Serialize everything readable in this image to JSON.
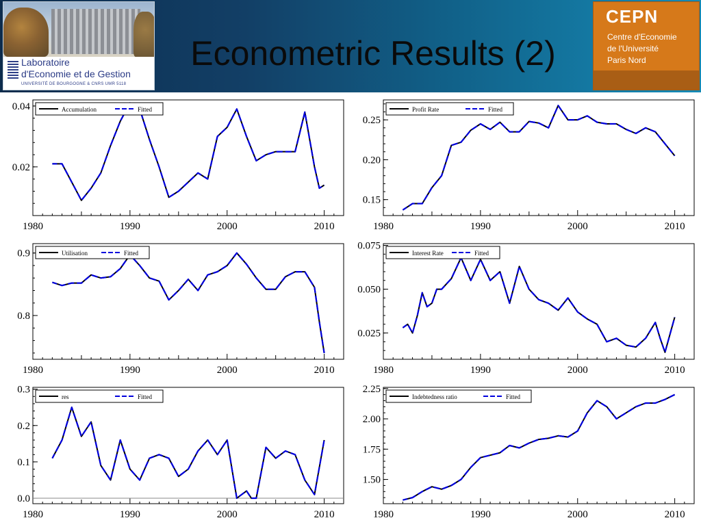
{
  "slide": {
    "title": "Econometric Results (2)",
    "logo_left": {
      "line1": "Laboratoire",
      "line2": "d'Economie et de Gestion",
      "line3": "UNIVERSITÉ DE BOURGOGNE & CNRS UMR 5118"
    },
    "logo_right": {
      "brand": "CEPN",
      "line1": "Centre d'Economie",
      "line2": "de l'Université",
      "line3": "Paris Nord"
    }
  },
  "colors": {
    "actual": "#000000",
    "fitted": "#0000dd",
    "header": "#123f66"
  },
  "chart_data": [
    {
      "type": "line",
      "legend": [
        "Accumulation",
        "Fitted"
      ],
      "xlim": [
        1980,
        2012
      ],
      "ylim": [
        0.004,
        0.042
      ],
      "xticks": [
        1980,
        1990,
        2000,
        2010
      ],
      "yticks": [
        {
          "v": 0.02,
          "label": "0.02"
        },
        {
          "v": 0.04,
          "label": "0.04"
        }
      ],
      "zero_line": false,
      "series": [
        {
          "name": "Accumulation",
          "x": [
            1982,
            1983,
            1984,
            1985,
            1986,
            1987,
            1988,
            1989,
            1990,
            1991,
            1992,
            1993,
            1994,
            1995,
            1996,
            1997,
            1998,
            1999,
            2000,
            2001,
            2002,
            2003,
            2004,
            2005,
            2006,
            2007,
            2008,
            2009,
            2009.5,
            2010
          ],
          "y": [
            0.021,
            0.021,
            0.015,
            0.009,
            0.013,
            0.018,
            0.027,
            0.035,
            0.041,
            0.039,
            0.029,
            0.02,
            0.01,
            0.012,
            0.015,
            0.018,
            0.016,
            0.03,
            0.033,
            0.039,
            0.03,
            0.022,
            0.024,
            0.025,
            0.025,
            0.025,
            0.038,
            0.02,
            0.013,
            0.014
          ]
        }
      ]
    },
    {
      "type": "line",
      "legend": [
        "Profit Rate",
        "Fitted"
      ],
      "xlim": [
        1980,
        2012
      ],
      "ylim": [
        0.13,
        0.275
      ],
      "xticks": [
        1980,
        1990,
        2000,
        2010
      ],
      "yticks": [
        {
          "v": 0.15,
          "label": "0.15"
        },
        {
          "v": 0.2,
          "label": "0.20"
        },
        {
          "v": 0.25,
          "label": "0.25"
        }
      ],
      "zero_line": false,
      "series": [
        {
          "name": "Profit Rate",
          "x": [
            1982,
            1983,
            1984,
            1985,
            1986,
            1987,
            1988,
            1989,
            1990,
            1991,
            1992,
            1993,
            1994,
            1995,
            1996,
            1997,
            1998,
            1999,
            2000,
            2001,
            2002,
            2003,
            2004,
            2005,
            2006,
            2007,
            2008,
            2009,
            2010
          ],
          "y": [
            0.137,
            0.145,
            0.145,
            0.165,
            0.18,
            0.218,
            0.222,
            0.237,
            0.245,
            0.238,
            0.247,
            0.235,
            0.235,
            0.248,
            0.246,
            0.24,
            0.268,
            0.25,
            0.25,
            0.255,
            0.247,
            0.245,
            0.245,
            0.238,
            0.233,
            0.24,
            0.235,
            0.22,
            0.205
          ]
        }
      ]
    },
    {
      "type": "line",
      "legend": [
        "Utilisation",
        "Fitted"
      ],
      "xlim": [
        1980,
        2012
      ],
      "ylim": [
        0.73,
        0.915
      ],
      "xticks": [
        1980,
        1990,
        2000,
        2010
      ],
      "yticks": [
        {
          "v": 0.8,
          "label": "0.8"
        },
        {
          "v": 0.9,
          "label": "0.9"
        }
      ],
      "zero_line": false,
      "series": [
        {
          "name": "Utilisation",
          "x": [
            1982,
            1983,
            1984,
            1985,
            1986,
            1987,
            1988,
            1989,
            1990,
            1991,
            1992,
            1993,
            1994,
            1995,
            1996,
            1997,
            1998,
            1999,
            2000,
            2001,
            2002,
            2003,
            2004,
            2005,
            2006,
            2007,
            2008,
            2009,
            2009.5,
            2010
          ],
          "y": [
            0.853,
            0.848,
            0.852,
            0.852,
            0.865,
            0.86,
            0.862,
            0.875,
            0.897,
            0.88,
            0.86,
            0.855,
            0.825,
            0.84,
            0.858,
            0.84,
            0.865,
            0.87,
            0.88,
            0.9,
            0.882,
            0.86,
            0.842,
            0.842,
            0.862,
            0.87,
            0.87,
            0.845,
            0.79,
            0.74
          ]
        }
      ]
    },
    {
      "type": "line",
      "legend": [
        "Interest Rate",
        "Fitted"
      ],
      "xlim": [
        1980,
        2012
      ],
      "ylim": [
        0.01,
        0.076
      ],
      "xticks": [
        1980,
        1990,
        2000,
        2010
      ],
      "yticks": [
        {
          "v": 0.025,
          "label": "0.025"
        },
        {
          "v": 0.05,
          "label": "0.050"
        },
        {
          "v": 0.075,
          "label": "0.075"
        }
      ],
      "zero_line": false,
      "series": [
        {
          "name": "Interest Rate",
          "x": [
            1982,
            1982.5,
            1983,
            1983.5,
            1984,
            1984.5,
            1985,
            1985.5,
            1986,
            1987,
            1988,
            1989,
            1990,
            1991,
            1992,
            1993,
            1994,
            1995,
            1996,
            1997,
            1998,
            1999,
            2000,
            2001,
            2002,
            2003,
            2004,
            2005,
            2006,
            2007,
            2008,
            2008.5,
            2009,
            2010
          ],
          "y": [
            0.028,
            0.03,
            0.025,
            0.035,
            0.048,
            0.04,
            0.042,
            0.05,
            0.05,
            0.056,
            0.068,
            0.055,
            0.067,
            0.055,
            0.06,
            0.042,
            0.063,
            0.05,
            0.044,
            0.042,
            0.038,
            0.045,
            0.037,
            0.033,
            0.03,
            0.02,
            0.022,
            0.018,
            0.017,
            0.022,
            0.031,
            0.022,
            0.014,
            0.034
          ]
        }
      ]
    },
    {
      "type": "line",
      "legend": [
        "res",
        "Fitted"
      ],
      "xlim": [
        1980,
        2012
      ],
      "ylim": [
        -0.015,
        0.305
      ],
      "xticks": [
        1980,
        1990,
        2000,
        2010
      ],
      "yticks": [
        {
          "v": 0.0,
          "label": "0.0"
        },
        {
          "v": 0.1,
          "label": "0.1"
        },
        {
          "v": 0.2,
          "label": "0.2"
        },
        {
          "v": 0.3,
          "label": "0.3"
        }
      ],
      "zero_line": true,
      "series": [
        {
          "name": "res",
          "x": [
            1982,
            1983,
            1984,
            1985,
            1986,
            1987,
            1988,
            1989,
            1990,
            1991,
            1992,
            1993,
            1994,
            1995,
            1996,
            1997,
            1998,
            1999,
            2000,
            2001,
            2002,
            2002.5,
            2003,
            2004,
            2005,
            2006,
            2007,
            2008,
            2009,
            2010
          ],
          "y": [
            0.11,
            0.16,
            0.25,
            0.17,
            0.21,
            0.09,
            0.05,
            0.16,
            0.08,
            0.05,
            0.11,
            0.12,
            0.11,
            0.06,
            0.08,
            0.13,
            0.16,
            0.12,
            0.16,
            0.0,
            0.02,
            0.0,
            0.0,
            0.14,
            0.11,
            0.13,
            0.12,
            0.05,
            0.01,
            0.16
          ]
        }
      ]
    },
    {
      "type": "line",
      "legend": [
        "Indebtedness ratio",
        "Fitted"
      ],
      "xlim": [
        1980,
        2012
      ],
      "ylim": [
        1.3,
        2.26
      ],
      "xticks": [
        1980,
        1990,
        2000,
        2010
      ],
      "yticks": [
        {
          "v": 1.5,
          "label": "1.50"
        },
        {
          "v": 1.75,
          "label": "1.75"
        },
        {
          "v": 2.0,
          "label": "2.00"
        },
        {
          "v": 2.25,
          "label": "2.25"
        }
      ],
      "zero_line": false,
      "series": [
        {
          "name": "Indebtedness ratio",
          "x": [
            1982,
            1983,
            1984,
            1985,
            1986,
            1987,
            1988,
            1989,
            1990,
            1991,
            1992,
            1993,
            1994,
            1995,
            1996,
            1997,
            1998,
            1999,
            2000,
            2001,
            2002,
            2003,
            2004,
            2005,
            2006,
            2007,
            2008,
            2009,
            2010
          ],
          "y": [
            1.33,
            1.35,
            1.4,
            1.44,
            1.42,
            1.45,
            1.5,
            1.6,
            1.68,
            1.7,
            1.72,
            1.78,
            1.76,
            1.8,
            1.83,
            1.84,
            1.86,
            1.85,
            1.9,
            2.05,
            2.15,
            2.1,
            2.0,
            2.05,
            2.1,
            2.13,
            2.13,
            2.16,
            2.2
          ]
        }
      ]
    }
  ]
}
